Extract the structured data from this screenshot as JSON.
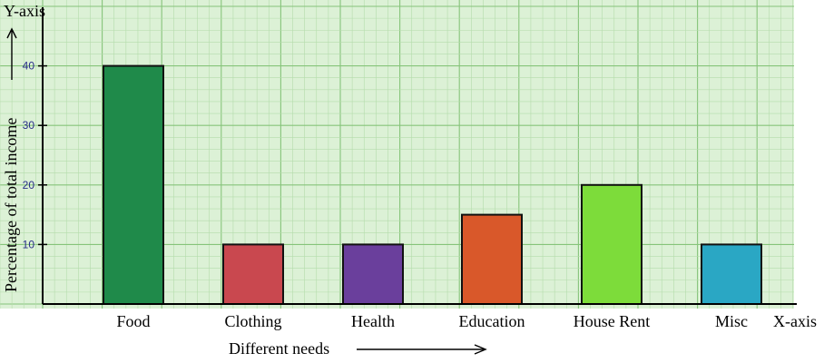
{
  "chart_data": {
    "type": "bar",
    "categories": [
      "Food",
      "Clothing",
      "Health",
      "Education",
      "House Rent",
      "Misc"
    ],
    "values": [
      40,
      10,
      10,
      15,
      20,
      10
    ],
    "xlabel": "Different needs",
    "ylabel": "Percentage of total income",
    "x_axis_name": "X-axis",
    "y_axis_name": "Y-axis",
    "ylim": [
      0,
      50
    ],
    "y_ticks": [
      10,
      20,
      30,
      40
    ],
    "y_tick_labels": [
      "10",
      "20",
      "30",
      "40"
    ],
    "grid": true,
    "legend": "none",
    "bar_colors": [
      "#1f8a4a",
      "#c9484f",
      "#6a3f9c",
      "#d9582a",
      "#7ddc3a",
      "#2aa7c4"
    ],
    "background_color": "#dcf1d6",
    "grid_minor_color": "#b4dcab",
    "grid_major_color": "#86c47a"
  }
}
